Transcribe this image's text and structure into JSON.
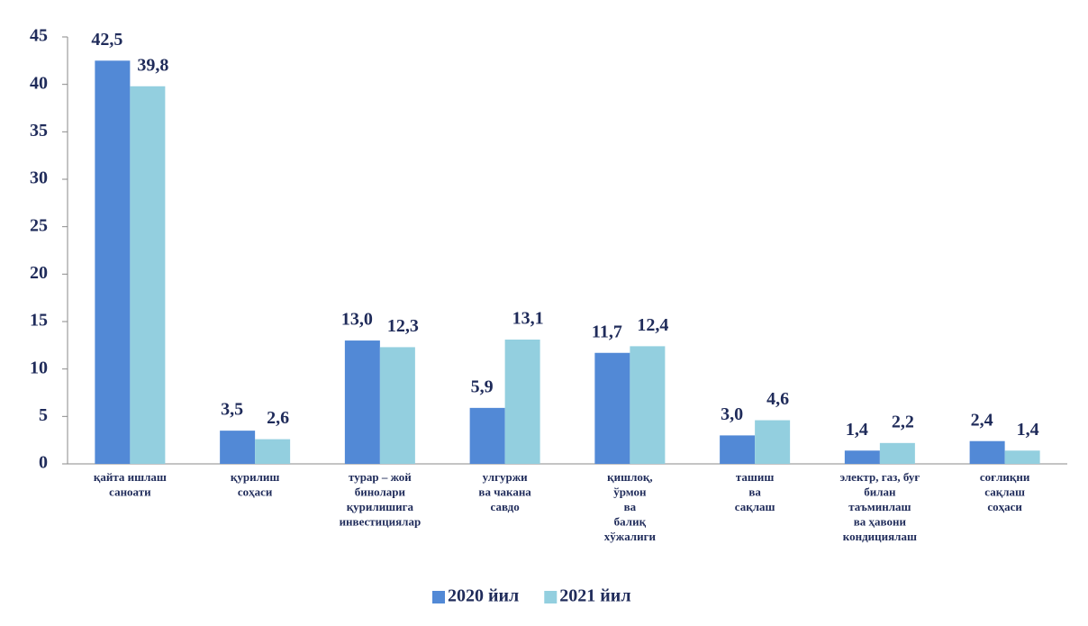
{
  "chart_data": {
    "type": "bar",
    "categories": [
      "қайта ишлаш\nсаноати",
      "қурилиш\nсоҳаси",
      "турар – жой\nбинолари\nқурилишига\nинвестициялар",
      "улгуржи\nва чакана\nсавдо",
      "қишлоқ,\nўрмон\nва\nбалиқ\nхўжалиги",
      "ташиш\nва\nсақлаш",
      "электр, газ, буғ\nбилан\nтаъминлаш\nва ҳавони\nкондициялаш",
      "соғлиқни\nсақлаш\nсоҳаси"
    ],
    "series": [
      {
        "name": "2020 йил",
        "color": "#5289d6",
        "values": [
          42.5,
          3.5,
          13.0,
          5.9,
          11.7,
          3.0,
          1.4,
          2.4
        ],
        "value_labels": [
          "42,5",
          "3,5",
          "13,0",
          "5,9",
          "11,7",
          "3,0",
          "1,4",
          "2,4"
        ]
      },
      {
        "name": "2021 йил",
        "color": "#93cfdf",
        "values": [
          39.8,
          2.6,
          12.3,
          13.1,
          12.4,
          4.6,
          2.2,
          1.4
        ],
        "value_labels": [
          "39,8",
          "2,6",
          "12,3",
          "13,1",
          "12,4",
          "4,6",
          "2,2",
          "1,4"
        ]
      }
    ],
    "ylim": [
      0,
      45
    ],
    "yticks": [
      0,
      5,
      10,
      15,
      20,
      25,
      30,
      35,
      40,
      45
    ],
    "grid": false,
    "legend": "bottom"
  }
}
